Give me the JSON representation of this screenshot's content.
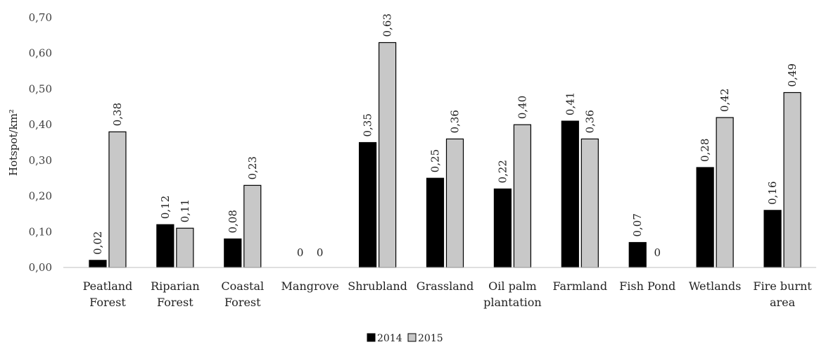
{
  "chart_data": {
    "type": "bar",
    "title": "",
    "xlabel": "",
    "ylabel": "Hotspot/km²",
    "ylim": [
      0,
      0.7
    ],
    "ytick_step": 0.1,
    "ytick_labels": [
      "0,00",
      "0,10",
      "0,20",
      "0,30",
      "0,40",
      "0,50",
      "0,60",
      "0,70"
    ],
    "grid": false,
    "legend_position": "bottom",
    "categories": [
      [
        "Peatland",
        "Forest"
      ],
      [
        "Riparian",
        "Forest"
      ],
      [
        "Coastal",
        "Forest"
      ],
      [
        "Mangrove"
      ],
      [
        "Shrubland"
      ],
      [
        "Grassland"
      ],
      [
        "Oil palm",
        "plantation"
      ],
      [
        "Farmland"
      ],
      [
        "Fish Pond"
      ],
      [
        "Wetlands"
      ],
      [
        "Fire burnt",
        "area"
      ]
    ],
    "series": [
      {
        "name": "2014",
        "color": "#000000",
        "values": [
          0.02,
          0.12,
          0.08,
          0,
          0.35,
          0.25,
          0.22,
          0.41,
          0.07,
          0.28,
          0.16
        ],
        "labels": [
          "0,02",
          "0,12",
          "0,08",
          "0",
          "0,35",
          "0,25",
          "0,22",
          "0,41",
          "0,07",
          "0,28",
          "0,16"
        ]
      },
      {
        "name": "2015",
        "color": "#c8c8c8",
        "values": [
          0.38,
          0.11,
          0.23,
          0,
          0.63,
          0.36,
          0.4,
          0.36,
          0,
          0.42,
          0.49
        ],
        "labels": [
          "0,38",
          "0,11",
          "0,23",
          "0",
          "0,63",
          "0,36",
          "0,40",
          "0,36",
          "0",
          "0,42",
          "0,49"
        ]
      }
    ]
  }
}
